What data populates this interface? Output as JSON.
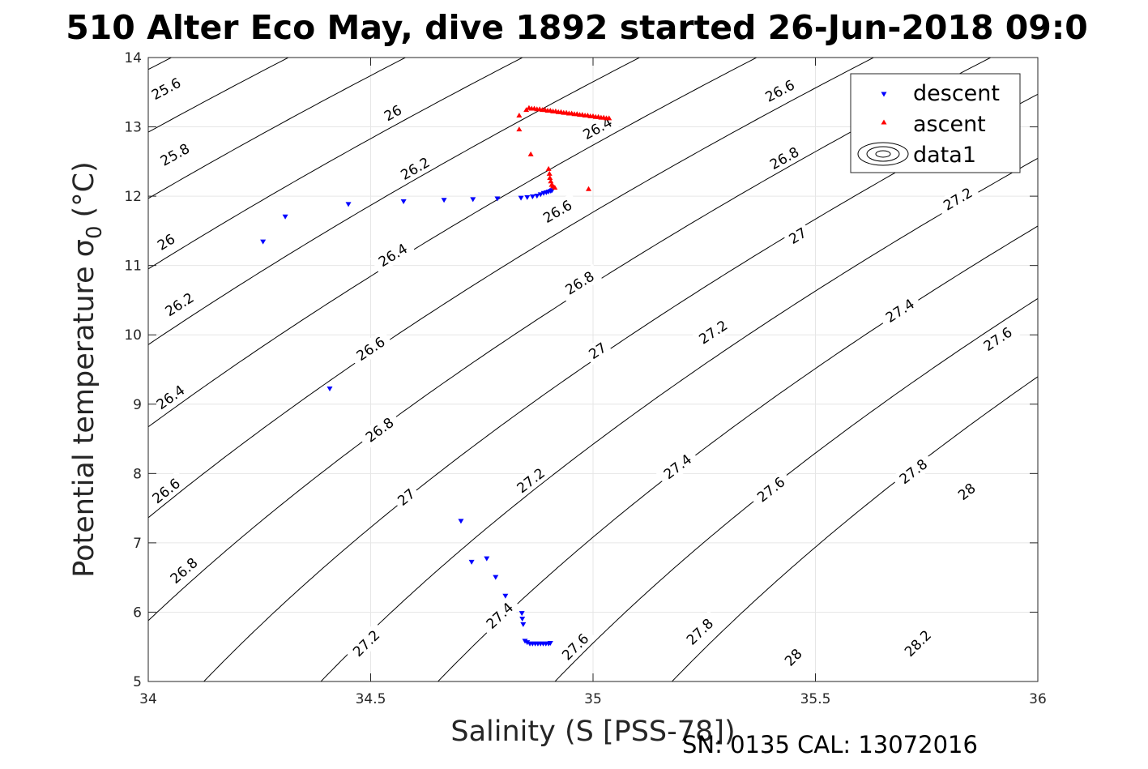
{
  "title": "510 Alter Eco May, dive 1892 started 26-Jun-2018 09:0",
  "footer": "SN: 0135  CAL: 13072016",
  "chart_data": {
    "type": "scatter",
    "title": "510 Alter Eco May, dive 1892 started 26-Jun-2018 09:0",
    "xlabel": "Salinity (S [PSS-78])",
    "ylabel": "Potential temperature σ",
    "ylabel_subscript": "0",
    "ylabel_unit": "(°C)",
    "xlim": [
      34,
      36
    ],
    "ylim": [
      5,
      14
    ],
    "x_ticks": [
      34,
      34.5,
      35,
      35.5,
      36
    ],
    "y_ticks": [
      5,
      6,
      7,
      8,
      9,
      10,
      11,
      12,
      13,
      14
    ],
    "grid": true,
    "legend_position": "top-right",
    "colors": {
      "descent": "#0000ff",
      "ascent": "#ff0000",
      "contour": "#000000"
    },
    "series": [
      {
        "name": "descent",
        "marker": "triangle-down",
        "points": [
          [
            34.258,
            11.34
          ],
          [
            34.308,
            11.7
          ],
          [
            34.45,
            11.88
          ],
          [
            34.574,
            11.92
          ],
          [
            34.665,
            11.94
          ],
          [
            34.73,
            11.95
          ],
          [
            34.785,
            11.96
          ],
          [
            34.838,
            11.97
          ],
          [
            34.852,
            11.98
          ],
          [
            34.864,
            11.99
          ],
          [
            34.874,
            12.0
          ],
          [
            34.882,
            12.02
          ],
          [
            34.889,
            12.04
          ],
          [
            34.895,
            12.05
          ],
          [
            34.9,
            12.06
          ],
          [
            34.905,
            12.07
          ],
          [
            34.908,
            12.08
          ],
          [
            34.408,
            9.22
          ],
          [
            34.703,
            7.31
          ],
          [
            34.727,
            6.72
          ],
          [
            34.761,
            6.77
          ],
          [
            34.781,
            6.5
          ],
          [
            34.803,
            6.23
          ],
          [
            34.84,
            5.98
          ],
          [
            34.841,
            5.9
          ],
          [
            34.843,
            5.82
          ],
          [
            34.847,
            5.58
          ],
          [
            34.852,
            5.56
          ],
          [
            34.858,
            5.54
          ],
          [
            34.864,
            5.54
          ],
          [
            34.87,
            5.54
          ],
          [
            34.876,
            5.54
          ],
          [
            34.882,
            5.54
          ],
          [
            34.888,
            5.54
          ],
          [
            34.894,
            5.54
          ],
          [
            34.9,
            5.54
          ],
          [
            34.904,
            5.55
          ]
        ]
      },
      {
        "name": "ascent",
        "marker": "triangle-up",
        "points": [
          [
            34.834,
            13.17
          ],
          [
            34.834,
            12.97
          ],
          [
            34.86,
            12.61
          ],
          [
            34.9,
            12.4
          ],
          [
            34.902,
            12.33
          ],
          [
            34.903,
            12.27
          ],
          [
            34.905,
            12.22
          ],
          [
            34.907,
            12.17
          ],
          [
            34.91,
            12.15
          ],
          [
            34.914,
            12.13
          ],
          [
            34.99,
            12.11
          ],
          [
            34.85,
            13.25
          ],
          [
            34.856,
            13.28
          ],
          [
            34.862,
            13.27
          ],
          [
            34.868,
            13.27
          ],
          [
            34.874,
            13.26
          ],
          [
            34.88,
            13.26
          ],
          [
            34.886,
            13.25
          ],
          [
            34.892,
            13.25
          ],
          [
            34.898,
            13.24
          ],
          [
            34.904,
            13.24
          ],
          [
            34.91,
            13.23
          ],
          [
            34.916,
            13.23
          ],
          [
            34.922,
            13.22
          ],
          [
            34.928,
            13.22
          ],
          [
            34.934,
            13.21
          ],
          [
            34.94,
            13.21
          ],
          [
            34.946,
            13.2
          ],
          [
            34.952,
            13.2
          ],
          [
            34.958,
            13.19
          ],
          [
            34.964,
            13.19
          ],
          [
            34.97,
            13.18
          ],
          [
            34.976,
            13.18
          ],
          [
            34.982,
            13.17
          ],
          [
            34.988,
            13.17
          ],
          [
            34.994,
            13.16
          ],
          [
            35.0,
            13.16
          ],
          [
            35.006,
            13.15
          ],
          [
            35.012,
            13.15
          ],
          [
            35.018,
            13.14
          ],
          [
            35.024,
            13.14
          ],
          [
            35.03,
            13.13
          ],
          [
            35.036,
            13.13
          ]
        ]
      },
      {
        "name": "data1",
        "type": "contour"
      }
    ],
    "contours": {
      "levels": [
        25.6,
        25.8,
        26,
        26.2,
        26.4,
        26.6,
        26.8,
        27,
        27.2,
        27.4,
        27.6,
        27.8,
        28,
        28.2,
        28.4
      ],
      "labels": [
        {
          "text": "25.6",
          "s": 34.04,
          "t": 13.55
        },
        {
          "text": "25.8",
          "s": 34.06,
          "t": 12.6
        },
        {
          "text": "26",
          "s": 34.04,
          "t": 11.34
        },
        {
          "text": "26.2",
          "s": 34.07,
          "t": 10.44
        },
        {
          "text": "26.4",
          "s": 34.05,
          "t": 9.1
        },
        {
          "text": "26.6",
          "s": 34.04,
          "t": 7.75
        },
        {
          "text": "26.8",
          "s": 34.08,
          "t": 6.6
        },
        {
          "text": "27.2",
          "s": 34.49,
          "t": 5.55
        },
        {
          "text": "26",
          "s": 34.55,
          "t": 13.2
        },
        {
          "text": "26.2",
          "s": 34.6,
          "t": 12.4
        },
        {
          "text": "26.4",
          "s": 34.55,
          "t": 11.15
        },
        {
          "text": "26.6",
          "s": 34.5,
          "t": 9.8
        },
        {
          "text": "26.8",
          "s": 34.52,
          "t": 8.63
        },
        {
          "text": "27",
          "s": 34.58,
          "t": 7.66
        },
        {
          "text": "27.4",
          "s": 34.79,
          "t": 5.95
        },
        {
          "text": "26.4",
          "s": 35.01,
          "t": 12.98
        },
        {
          "text": "26.6",
          "s": 34.92,
          "t": 11.78
        },
        {
          "text": "26.8",
          "s": 34.97,
          "t": 10.75
        },
        {
          "text": "27",
          "s": 35.01,
          "t": 9.77
        },
        {
          "text": "27.2",
          "s": 34.86,
          "t": 7.9
        },
        {
          "text": "27.6",
          "s": 34.96,
          "t": 5.5
        },
        {
          "text": "26.6",
          "s": 35.42,
          "t": 13.52
        },
        {
          "text": "26.8",
          "s": 35.43,
          "t": 12.55
        },
        {
          "text": "27",
          "s": 35.46,
          "t": 11.43
        },
        {
          "text": "27.2",
          "s": 35.27,
          "t": 10.04
        },
        {
          "text": "27.4",
          "s": 35.19,
          "t": 8.1
        },
        {
          "text": "27.6",
          "s": 35.4,
          "t": 7.77
        },
        {
          "text": "27.8",
          "s": 35.24,
          "t": 5.72
        },
        {
          "text": "27.2",
          "s": 35.82,
          "t": 11.96
        },
        {
          "text": "27.4",
          "s": 35.69,
          "t": 10.35
        },
        {
          "text": "27.6",
          "s": 35.91,
          "t": 9.94
        },
        {
          "text": "27.8",
          "s": 35.72,
          "t": 8.03
        },
        {
          "text": "28",
          "s": 35.84,
          "t": 7.74
        },
        {
          "text": "28",
          "s": 35.45,
          "t": 5.35
        },
        {
          "text": "28.2",
          "s": 35.73,
          "t": 5.55
        }
      ]
    }
  }
}
